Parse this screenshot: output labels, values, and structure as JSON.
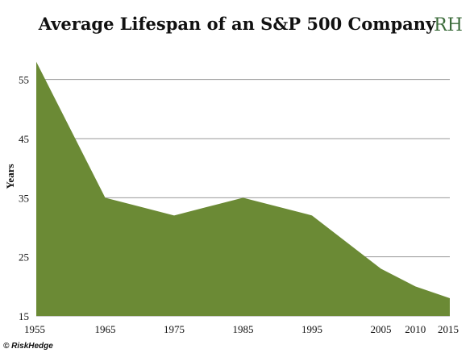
{
  "logo_text": "RH",
  "credit": "© RiskHedge",
  "colors": {
    "area": "#6b8a35",
    "grid": "#9a9a9a",
    "logo": "#3b6b3a"
  },
  "chart_data": {
    "type": "area",
    "title": "Average Lifespan of an S&P 500 Company",
    "xlabel": "",
    "ylabel": "Years",
    "x": [
      1955,
      1965,
      1975,
      1985,
      1995,
      2005,
      2010,
      2015
    ],
    "series": [
      {
        "values": [
          58,
          35,
          32,
          35,
          32,
          23,
          20,
          18
        ]
      }
    ],
    "yticks": [
      15,
      25,
      35,
      45,
      55
    ],
    "ylim": [
      15,
      60
    ],
    "grid": true,
    "legend": "none"
  }
}
